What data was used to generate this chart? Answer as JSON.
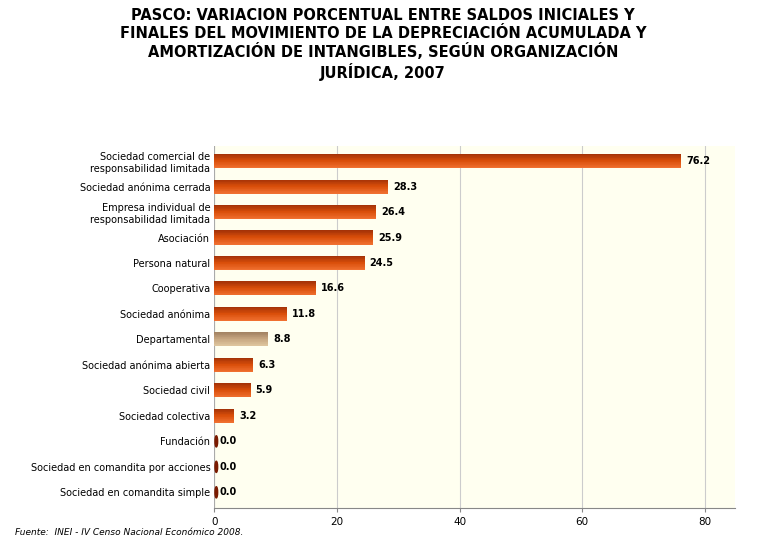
{
  "title": "PASCO: VARIACION PORCENTUAL ENTRE SALDOS INICIALES Y\nFINALES DEL MOVIMIENTO DE LA DEPRECIACIÓN ACUMULADA Y\nAMORTIZACIÓN DE INTANGIBLES, SEGÚN ORGANIZACIÓN\nJURÍDICA, 2007",
  "categories": [
    "Sociedad en comandita simple",
    "Sociedad en comandita por acciones",
    "Fundación",
    "Sociedad colectiva",
    "Sociedad civil",
    "Sociedad anónima abierta",
    "Departamental",
    "Sociedad anónima",
    "Cooperativa",
    "Persona natural",
    "Asociación",
    "Empresa individual de\nresponsabilidad limitada",
    "Sociedad anónima cerrada",
    "Sociedad comercial de\nresponsabilidad limitada"
  ],
  "values": [
    0.0,
    0.0,
    0.0,
    3.2,
    5.9,
    6.3,
    8.8,
    11.8,
    16.6,
    24.5,
    25.9,
    26.4,
    28.3,
    76.2
  ],
  "bar_colors_main": [
    "#7a1a00",
    "#7a1a00",
    "#7a1a00",
    "#d94e0a",
    "#d94e0a",
    "#d94e0a",
    "#c8a882",
    "#d94e0a",
    "#d94e0a",
    "#d94e0a",
    "#d94e0a",
    "#d94e0a",
    "#d94e0a",
    "#d94e0a"
  ],
  "bar_colors_top": [
    "#a02a00",
    "#a02a00",
    "#a02a00",
    "#f07030",
    "#f07030",
    "#f07030",
    "#e0c8a0",
    "#f07030",
    "#f07030",
    "#f07030",
    "#f07030",
    "#f07030",
    "#f07030",
    "#f07030"
  ],
  "bar_colors_bottom": [
    "#4a0a00",
    "#4a0a00",
    "#4a0a00",
    "#a03008",
    "#a03008",
    "#a03008",
    "#a08060",
    "#a03008",
    "#a03008",
    "#a03008",
    "#a03008",
    "#a03008",
    "#a03008",
    "#a03008"
  ],
  "xlim": [
    0,
    85
  ],
  "xticks": [
    0,
    20,
    40,
    60,
    80
  ],
  "plot_bg": "#fffff0",
  "fig_bg": "#ffffff",
  "footer": "Fuente:  INEI - IV Censo Nacional Económico 2008.",
  "title_fontsize": 10.5,
  "label_fontsize": 7,
  "value_fontsize": 7
}
